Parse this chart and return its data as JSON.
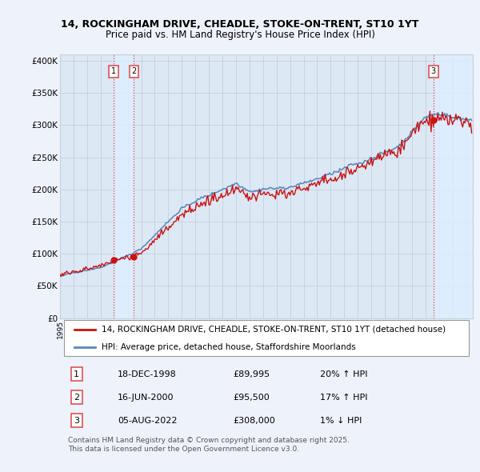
{
  "title": "14, ROCKINGHAM DRIVE, CHEADLE, STOKE-ON-TRENT, ST10 1YT",
  "subtitle": "Price paid vs. HM Land Registry's House Price Index (HPI)",
  "ylabel_ticks": [
    "£0",
    "£50K",
    "£100K",
    "£150K",
    "£200K",
    "£250K",
    "£300K",
    "£350K",
    "£400K"
  ],
  "ytick_values": [
    0,
    50000,
    100000,
    150000,
    200000,
    250000,
    300000,
    350000,
    400000
  ],
  "ylim": [
    0,
    410000
  ],
  "xlim_start": 1995.0,
  "xlim_end": 2025.5,
  "sale_dates": [
    1998.96,
    2000.46,
    2022.59
  ],
  "sale_prices": [
    89995,
    95500,
    308000
  ],
  "sale_labels": [
    "1",
    "2",
    "3"
  ],
  "sale_label_pct": [
    "20% ↑ HPI",
    "17% ↑ HPI",
    "1% ↓ HPI"
  ],
  "sale_label_dates": [
    "18-DEC-1998",
    "16-JUN-2000",
    "05-AUG-2022"
  ],
  "sale_label_prices": [
    "£89,995",
    "£95,500",
    "£308,000"
  ],
  "vline_color": "#dd4444",
  "vline_style": ":",
  "legend_red_label": "14, ROCKINGHAM DRIVE, CHEADLE, STOKE-ON-TRENT, ST10 1YT (detached house)",
  "legend_blue_label": "HPI: Average price, detached house, Staffordshire Moorlands",
  "red_line_color": "#cc1111",
  "blue_line_color": "#5588bb",
  "shade_color": "#ddeeff",
  "footer_text": "Contains HM Land Registry data © Crown copyright and database right 2025.\nThis data is licensed under the Open Government Licence v3.0.",
  "background_color": "#eef2fa",
  "plot_bg_color": "#dde8f5",
  "grid_color": "#c5d0e0",
  "title_fontsize": 9,
  "subtitle_fontsize": 8.5,
  "tick_fontsize": 7.5,
  "legend_fontsize": 7.5,
  "footer_fontsize": 6.5
}
